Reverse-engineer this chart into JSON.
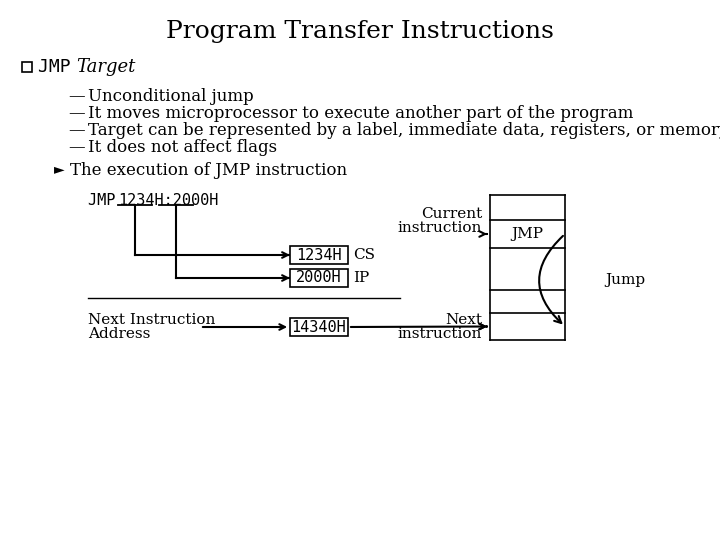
{
  "title": "Program Transfer Instructions",
  "title_fontsize": 18,
  "bg_color": "#ffffff",
  "text_color": "#000000",
  "dash_items": [
    "Unconditional jump",
    "It moves microprocessor to execute another part of the program",
    "Target can be represented by a label, immediate data, registers, or memory location",
    "It does not affect flags"
  ],
  "arrow_item": "The execution of JMP instruction",
  "diagram_label_jmp": "JMP ",
  "diagram_label_rest": "1234H:2000H",
  "box1_text": "1234H",
  "box1_label": "CS",
  "box2_text": "2000H",
  "box2_label": "IP",
  "box3_text": "14340H",
  "next_instr_label_line1": "Next Instruction",
  "next_instr_label_line2": "Address",
  "current_instr_label_line1": "Current",
  "current_instr_label_line2": "instruction",
  "jmp_label": "JMP",
  "next_label_line1": "Next",
  "next_label_line2": "instruction",
  "jump_label": "Jump",
  "bullet_fontsize": 13,
  "body_fontsize": 12,
  "diag_fontsize": 11
}
